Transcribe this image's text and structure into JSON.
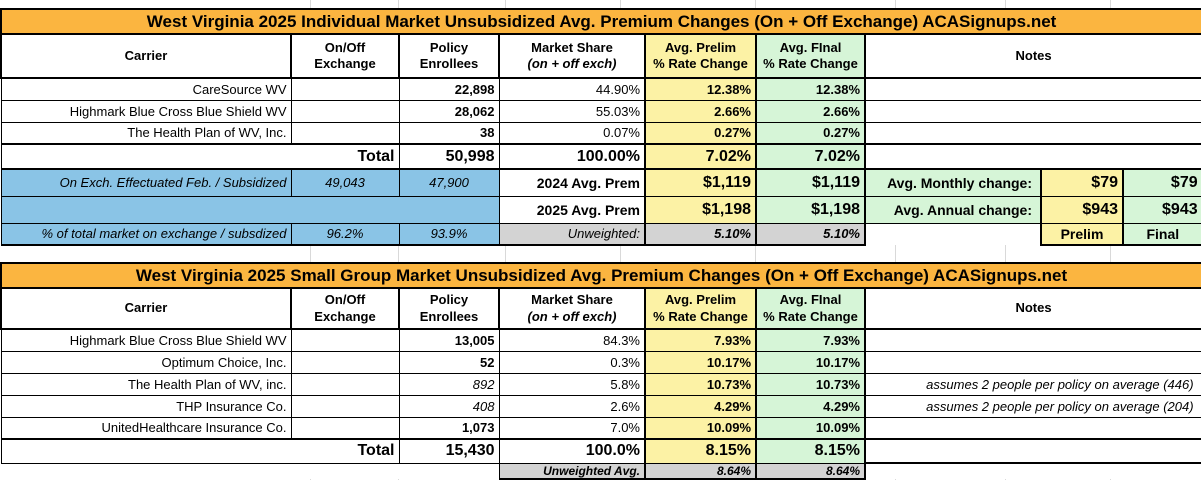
{
  "colors": {
    "title_bg": "#FBB540",
    "prelim_yellow": "#FCF2A5",
    "final_green": "#D6F5D7",
    "exchange_blue": "#8AC4E6",
    "unweighted_gray": "#D3D3D3"
  },
  "table1": {
    "title": "West Virginia 2025 Individual Market Unsubsidized Avg. Premium Changes (On + Off Exchange) ACASignups.net",
    "headers": {
      "carrier": "Carrier",
      "exchange": "On/Off\nExchange",
      "enrollees": "Policy\nEnrollees",
      "share1": "Market Share",
      "share2": "(on + off exch)",
      "prelim": "Avg. Prelim\n% Rate Change",
      "final": "Avg. FInal\n% Rate Change",
      "notes": "Notes"
    },
    "rows": [
      {
        "carrier": "CareSource WV",
        "exchange": "",
        "enrollees": "22,898",
        "share": "44.90%",
        "prelim": "12.38%",
        "final": "12.38%",
        "note": ""
      },
      {
        "carrier": "Highmark Blue Cross Blue Shield WV",
        "exchange": "",
        "enrollees": "28,062",
        "share": "55.03%",
        "prelim": "2.66%",
        "final": "2.66%",
        "note": ""
      },
      {
        "carrier": "The Health Plan of WV, Inc.",
        "exchange": "",
        "enrollees": "38",
        "share": "0.07%",
        "prelim": "0.27%",
        "final": "0.27%",
        "note": ""
      }
    ],
    "total": {
      "label": "Total",
      "enrollees": "50,998",
      "share": "100.00%",
      "prelim": "7.02%",
      "final": "7.02%"
    },
    "exch_row": {
      "label": "On Exch. Effectuated Feb. / Subsidized",
      "v1": "49,043",
      "v2": "47,900",
      "prem": "2024 Avg. Prem",
      "prelim": "$1,119",
      "final": "$1,119",
      "chg": "Avg. Monthly change:",
      "chg_prelim": "$79",
      "chg_final": "$79"
    },
    "prem_row": {
      "prem": "2025 Avg. Prem",
      "prelim": "$1,198",
      "final": "$1,198",
      "chg": "Avg. Annual change:",
      "chg_prelim": "$943",
      "chg_final": "$943"
    },
    "pct_row": {
      "label": "% of total market on exchange / subsdized",
      "v1": "96.2%",
      "v2": "93.9%",
      "unw": "Unweighted:",
      "prelim": "5.10%",
      "final": "5.10%",
      "col_prelim": "Prelim",
      "col_final": "Final"
    }
  },
  "table2": {
    "title": "West Virginia 2025 Small Group Market Unsubsidized Avg. Premium Changes (On + Off Exchange) ACASignups.net",
    "headers": {
      "carrier": "Carrier",
      "exchange": "On/Off\nExchange",
      "enrollees": "Policy\nEnrollees",
      "share1": "Market Share",
      "share2": "(on + off exch)",
      "prelim": "Avg. Prelim\n% Rate Change",
      "final": "Avg. FInal\n% Rate Change",
      "notes": "Notes"
    },
    "rows": [
      {
        "carrier": "Highmark Blue Cross Blue Shield WV",
        "exchange": "",
        "enrollees": "13,005",
        "share": "84.3%",
        "prelim": "7.93%",
        "final": "7.93%",
        "note": ""
      },
      {
        "carrier": "Optimum Choice, Inc.",
        "exchange": "",
        "enrollees": "52",
        "share": "0.3%",
        "prelim": "10.17%",
        "final": "10.17%",
        "note": ""
      },
      {
        "carrier": "The Health Plan of WV, inc.",
        "exchange": "",
        "enrollees": "892",
        "share": "5.8%",
        "prelim": "10.73%",
        "final": "10.73%",
        "note": "assumes 2 people per policy on average (446)"
      },
      {
        "carrier": "THP Insurance Co.",
        "exchange": "",
        "enrollees": "408",
        "share": "2.6%",
        "prelim": "4.29%",
        "final": "4.29%",
        "note": "assumes 2 people per policy on average (204)"
      },
      {
        "carrier": "UnitedHealthcare Insurance Co.",
        "exchange": "",
        "enrollees": "1,073",
        "share": "7.0%",
        "prelim": "10.09%",
        "final": "10.09%",
        "note": ""
      }
    ],
    "total": {
      "label": "Total",
      "enrollees": "15,430",
      "share": "100.0%",
      "prelim": "8.15%",
      "final": "8.15%"
    },
    "unweighted": {
      "label": "Unweighted Avg.",
      "prelim": "8.64%",
      "final": "8.64%"
    }
  }
}
